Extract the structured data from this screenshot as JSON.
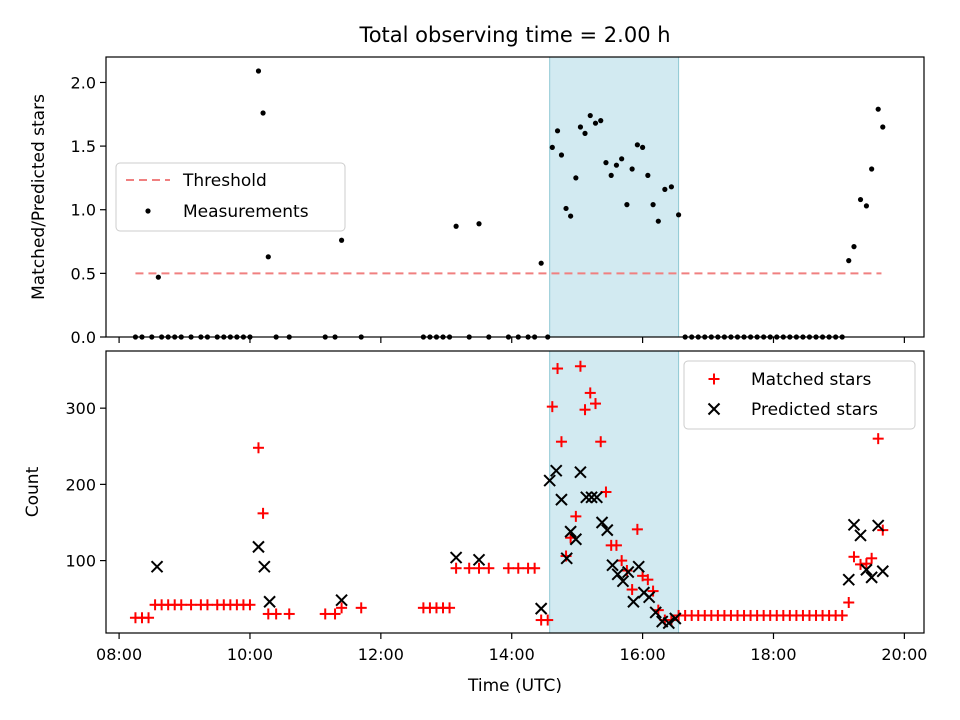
{
  "figure": {
    "title": "Total observing time = 2.00 h"
  },
  "colors": {
    "threshold": "#f08080",
    "matched": "#ff0000",
    "predicted": "#000000",
    "shade": "#add8e6",
    "measure": "#000000"
  },
  "chart_data": [
    {
      "id": "ratio",
      "type": "scatter",
      "ylabel": "Matched/Predicted stars",
      "xlabel": "",
      "xlim": [
        7.8,
        20.3
      ],
      "ylim": [
        0,
        2.2
      ],
      "yticks": [
        0.0,
        0.5,
        1.0,
        1.5,
        2.0
      ],
      "ytick_labels": [
        "0.0",
        "0.5",
        "1.0",
        "1.5",
        "2.0"
      ],
      "xticks": [
        8,
        10,
        12,
        14,
        16,
        18,
        20
      ],
      "shaded_span": [
        14.58,
        16.55
      ],
      "legend": {
        "placement": "center-left",
        "entries": [
          "Threshold",
          "Measurements"
        ]
      },
      "threshold": {
        "name": "Threshold",
        "x": [
          8.25,
          19.65
        ],
        "y": 0.5
      },
      "series": [
        {
          "name": "Measurements",
          "points": [
            [
              8.25,
              0
            ],
            [
              8.35,
              0
            ],
            [
              8.5,
              0
            ],
            [
              8.6,
              0.47
            ],
            [
              8.65,
              0
            ],
            [
              8.75,
              0
            ],
            [
              8.85,
              0
            ],
            [
              8.95,
              0
            ],
            [
              9.1,
              0
            ],
            [
              9.25,
              0
            ],
            [
              9.35,
              0
            ],
            [
              9.5,
              0
            ],
            [
              9.6,
              0
            ],
            [
              9.7,
              0
            ],
            [
              9.8,
              0
            ],
            [
              9.9,
              0
            ],
            [
              10.0,
              0
            ],
            [
              10.13,
              2.09
            ],
            [
              10.2,
              1.76
            ],
            [
              10.28,
              0.63
            ],
            [
              10.4,
              0
            ],
            [
              10.6,
              0
            ],
            [
              11.15,
              0
            ],
            [
              11.3,
              0
            ],
            [
              11.4,
              0.76
            ],
            [
              11.7,
              0
            ],
            [
              12.65,
              0
            ],
            [
              12.75,
              0
            ],
            [
              12.85,
              0
            ],
            [
              12.95,
              0
            ],
            [
              13.05,
              0
            ],
            [
              13.15,
              0.87
            ],
            [
              13.35,
              0
            ],
            [
              13.5,
              0.89
            ],
            [
              13.65,
              0
            ],
            [
              13.95,
              0
            ],
            [
              14.1,
              0
            ],
            [
              14.25,
              0
            ],
            [
              14.35,
              0
            ],
            [
              14.45,
              0.58
            ],
            [
              14.55,
              0
            ],
            [
              14.62,
              1.49
            ],
            [
              14.7,
              1.62
            ],
            [
              14.76,
              1.43
            ],
            [
              14.83,
              1.01
            ],
            [
              14.9,
              0.95
            ],
            [
              14.98,
              1.25
            ],
            [
              15.05,
              1.65
            ],
            [
              15.12,
              1.6
            ],
            [
              15.2,
              1.74
            ],
            [
              15.28,
              1.68
            ],
            [
              15.36,
              1.7
            ],
            [
              15.44,
              1.37
            ],
            [
              15.52,
              1.27
            ],
            [
              15.6,
              1.35
            ],
            [
              15.68,
              1.4
            ],
            [
              15.76,
              1.04
            ],
            [
              15.84,
              1.32
            ],
            [
              15.92,
              1.51
            ],
            [
              16.0,
              1.49
            ],
            [
              16.08,
              1.27
            ],
            [
              16.16,
              1.04
            ],
            [
              16.24,
              0.91
            ],
            [
              16.34,
              1.16
            ],
            [
              16.44,
              1.18
            ],
            [
              16.55,
              0.96
            ],
            [
              16.65,
              0
            ],
            [
              16.75,
              0
            ],
            [
              16.85,
              0
            ],
            [
              16.95,
              0
            ],
            [
              17.05,
              0
            ],
            [
              17.15,
              0
            ],
            [
              17.25,
              0
            ],
            [
              17.35,
              0
            ],
            [
              17.45,
              0
            ],
            [
              17.55,
              0
            ],
            [
              17.65,
              0
            ],
            [
              17.75,
              0
            ],
            [
              17.85,
              0
            ],
            [
              17.95,
              0
            ],
            [
              18.05,
              0
            ],
            [
              18.15,
              0
            ],
            [
              18.25,
              0
            ],
            [
              18.35,
              0
            ],
            [
              18.45,
              0
            ],
            [
              18.55,
              0
            ],
            [
              18.65,
              0
            ],
            [
              18.75,
              0
            ],
            [
              18.85,
              0
            ],
            [
              18.95,
              0
            ],
            [
              19.05,
              0
            ],
            [
              19.15,
              0.6
            ],
            [
              19.23,
              0.71
            ],
            [
              19.33,
              1.08
            ],
            [
              19.42,
              1.03
            ],
            [
              19.5,
              1.32
            ],
            [
              19.6,
              1.79
            ],
            [
              19.67,
              1.65
            ]
          ]
        }
      ]
    },
    {
      "id": "count",
      "type": "scatter",
      "ylabel": "Count",
      "xlabel": "Time (UTC)",
      "xlim": [
        7.8,
        20.3
      ],
      "ylim": [
        5,
        375
      ],
      "yticks": [
        100,
        200,
        300
      ],
      "ytick_labels": [
        "100",
        "200",
        "300"
      ],
      "xticks": [
        8,
        10,
        12,
        14,
        16,
        18,
        20
      ],
      "xtick_labels": [
        "08:00",
        "10:00",
        "12:00",
        "14:00",
        "16:00",
        "18:00",
        "20:00"
      ],
      "shaded_span": [
        14.58,
        16.55
      ],
      "legend": {
        "placement": "top-right",
        "entries": [
          "Matched stars",
          "Predicted stars"
        ]
      },
      "series": [
        {
          "name": "Matched stars",
          "marker": "plus",
          "points": [
            [
              8.25,
              25
            ],
            [
              8.35,
              25
            ],
            [
              8.45,
              25
            ],
            [
              8.55,
              42
            ],
            [
              8.65,
              42
            ],
            [
              8.75,
              42
            ],
            [
              8.85,
              42
            ],
            [
              8.95,
              42
            ],
            [
              9.1,
              42
            ],
            [
              9.25,
              42
            ],
            [
              9.35,
              42
            ],
            [
              9.5,
              42
            ],
            [
              9.6,
              42
            ],
            [
              9.7,
              42
            ],
            [
              9.8,
              42
            ],
            [
              9.9,
              42
            ],
            [
              10.0,
              42
            ],
            [
              10.13,
              248
            ],
            [
              10.2,
              162
            ],
            [
              10.28,
              30
            ],
            [
              10.4,
              30
            ],
            [
              10.6,
              30
            ],
            [
              11.15,
              30
            ],
            [
              11.3,
              30
            ],
            [
              11.4,
              38
            ],
            [
              11.7,
              38
            ],
            [
              12.65,
              38
            ],
            [
              12.75,
              38
            ],
            [
              12.85,
              38
            ],
            [
              12.95,
              38
            ],
            [
              13.05,
              38
            ],
            [
              13.15,
              90
            ],
            [
              13.35,
              90
            ],
            [
              13.5,
              90
            ],
            [
              13.65,
              90
            ],
            [
              13.95,
              90
            ],
            [
              14.1,
              90
            ],
            [
              14.25,
              90
            ],
            [
              14.35,
              90
            ],
            [
              14.45,
              22
            ],
            [
              14.55,
              22
            ],
            [
              14.62,
              302
            ],
            [
              14.7,
              352
            ],
            [
              14.76,
              256
            ],
            [
              14.83,
              106
            ],
            [
              14.9,
              130
            ],
            [
              14.98,
              158
            ],
            [
              15.05,
              355
            ],
            [
              15.12,
              298
            ],
            [
              15.2,
              320
            ],
            [
              15.28,
              306
            ],
            [
              15.36,
              256
            ],
            [
              15.44,
              190
            ],
            [
              15.52,
              120
            ],
            [
              15.6,
              120
            ],
            [
              15.68,
              100
            ],
            [
              15.76,
              87
            ],
            [
              15.84,
              62
            ],
            [
              15.92,
              141
            ],
            [
              16.0,
              80
            ],
            [
              16.08,
              75
            ],
            [
              16.16,
              60
            ],
            [
              16.24,
              35
            ],
            [
              16.34,
              22
            ],
            [
              16.44,
              22
            ],
            [
              16.55,
              28
            ],
            [
              16.65,
              28
            ],
            [
              16.75,
              28
            ],
            [
              16.85,
              28
            ],
            [
              16.95,
              28
            ],
            [
              17.05,
              28
            ],
            [
              17.15,
              28
            ],
            [
              17.25,
              28
            ],
            [
              17.35,
              28
            ],
            [
              17.45,
              28
            ],
            [
              17.55,
              28
            ],
            [
              17.65,
              28
            ],
            [
              17.75,
              28
            ],
            [
              17.85,
              28
            ],
            [
              17.95,
              28
            ],
            [
              18.05,
              28
            ],
            [
              18.15,
              28
            ],
            [
              18.25,
              28
            ],
            [
              18.35,
              28
            ],
            [
              18.45,
              28
            ],
            [
              18.55,
              28
            ],
            [
              18.65,
              28
            ],
            [
              18.75,
              28
            ],
            [
              18.85,
              28
            ],
            [
              18.95,
              28
            ],
            [
              19.05,
              28
            ],
            [
              19.15,
              45
            ],
            [
              19.23,
              105
            ],
            [
              19.33,
              95
            ],
            [
              19.42,
              96
            ],
            [
              19.5,
              103
            ],
            [
              19.6,
              260
            ],
            [
              19.67,
              140
            ]
          ]
        },
        {
          "name": "Predicted stars",
          "marker": "x",
          "points": [
            [
              8.58,
              92
            ],
            [
              10.13,
              118
            ],
            [
              10.22,
              92
            ],
            [
              10.3,
              46
            ],
            [
              11.4,
              48
            ],
            [
              13.15,
              104
            ],
            [
              13.5,
              101
            ],
            [
              14.45,
              37
            ],
            [
              14.58,
              205
            ],
            [
              14.68,
              218
            ],
            [
              14.76,
              180
            ],
            [
              14.84,
              103
            ],
            [
              14.9,
              138
            ],
            [
              14.98,
              128
            ],
            [
              15.05,
              216
            ],
            [
              15.14,
              183
            ],
            [
              15.22,
              183
            ],
            [
              15.3,
              183
            ],
            [
              15.38,
              150
            ],
            [
              15.46,
              140
            ],
            [
              15.54,
              94
            ],
            [
              15.62,
              82
            ],
            [
              15.7,
              73
            ],
            [
              15.78,
              85
            ],
            [
              15.86,
              46
            ],
            [
              15.94,
              92
            ],
            [
              16.02,
              58
            ],
            [
              16.1,
              52
            ],
            [
              16.2,
              32
            ],
            [
              16.3,
              20
            ],
            [
              16.4,
              18
            ],
            [
              16.5,
              24
            ],
            [
              19.15,
              75
            ],
            [
              19.23,
              147
            ],
            [
              19.33,
              133
            ],
            [
              19.42,
              88
            ],
            [
              19.5,
              78
            ],
            [
              19.6,
              146
            ],
            [
              19.67,
              86
            ]
          ]
        }
      ]
    }
  ]
}
